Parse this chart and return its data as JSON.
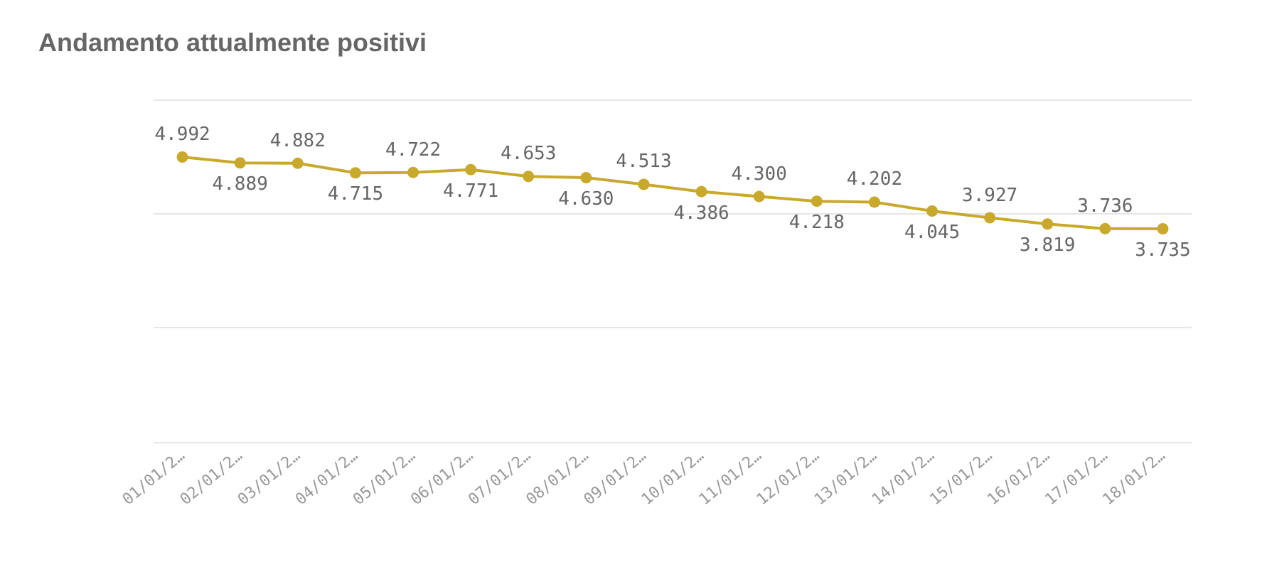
{
  "chart_data": {
    "type": "line",
    "title": "Andamento attualmente positivi",
    "categories": [
      "01/01/2…",
      "02/01/2…",
      "03/01/2…",
      "04/01/2…",
      "05/01/2…",
      "06/01/2…",
      "07/01/2…",
      "08/01/2…",
      "09/01/2…",
      "10/01/2…",
      "11/01/2…",
      "12/01/2…",
      "13/01/2…",
      "14/01/2…",
      "15/01/2…",
      "16/01/2…",
      "17/01/2…",
      "18/01/2…"
    ],
    "series": [
      {
        "color": "#c9a92c",
        "values": [
          4992,
          4889,
          4882,
          4715,
          4722,
          4771,
          4653,
          4630,
          4513,
          4386,
          4300,
          4218,
          4202,
          4045,
          3927,
          3819,
          3736,
          3735
        ],
        "value_labels": [
          "4.992",
          "4.889",
          "4.882",
          "4.715",
          "4.722",
          "4.771",
          "4.653",
          "4.630",
          "4.513",
          "4.386",
          "4.300",
          "4.218",
          "4.202",
          "4.045",
          "3.927",
          "3.819",
          "3.736",
          "3.735"
        ]
      }
    ],
    "ylim": [
      0,
      6000
    ],
    "yticks": [
      {
        "value": 0,
        "label": null
      },
      {
        "value": 2000,
        "label": null
      },
      {
        "value": 4000,
        "label": null
      },
      {
        "value": 6000,
        "label": null
      }
    ],
    "tick_labels": "x",
    "grid": "y",
    "marker": "circle",
    "line_style": "solid"
  }
}
